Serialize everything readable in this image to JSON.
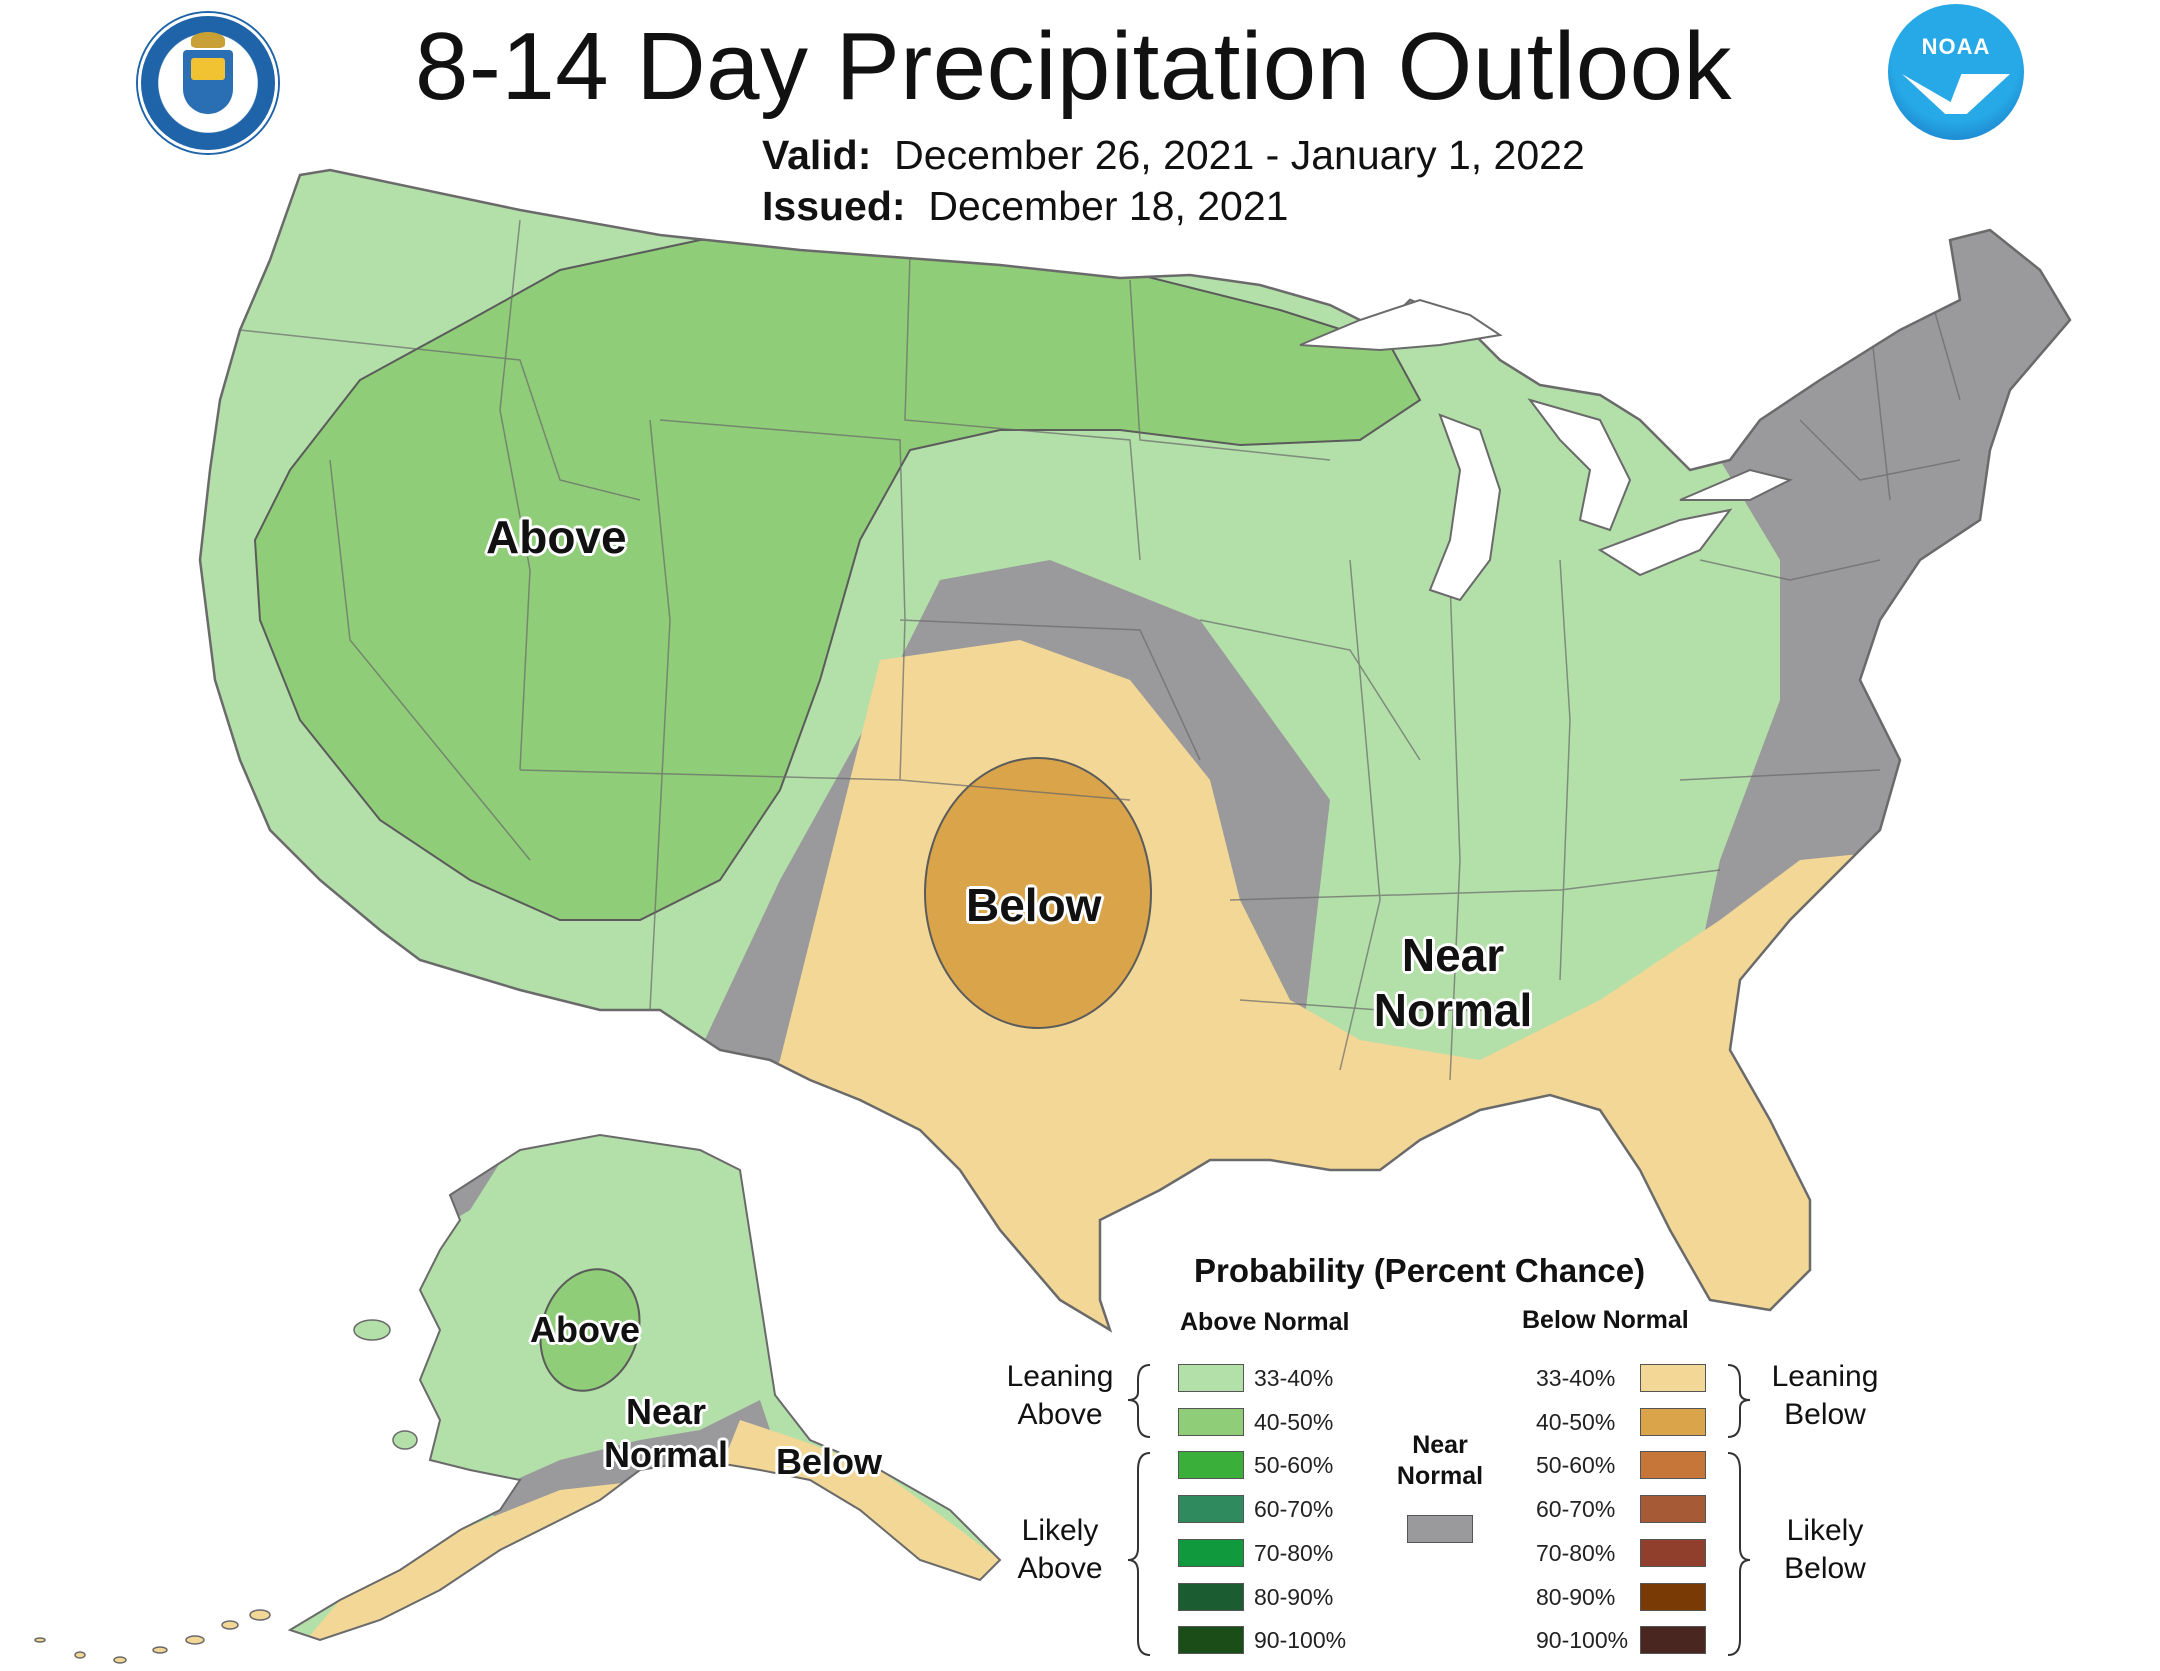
{
  "title": "8-14 Day Precipitation Outlook",
  "valid": {
    "label": "Valid:",
    "value": "December 26, 2021 - January 1, 2022"
  },
  "issued": {
    "label": "Issued:",
    "value": "December 18, 2021"
  },
  "logos": {
    "left": "department-of-commerce-seal",
    "right": "noaa-logo",
    "noaa_text": "NOAA"
  },
  "map_labels": {
    "conus_above": "Above",
    "conus_below": "Below",
    "conus_near_1": "Near",
    "conus_near_2": "Normal",
    "ak_above": "Above",
    "ak_near_1": "Near",
    "ak_near_2": "Normal",
    "ak_below": "Below"
  },
  "colors": {
    "above_33_40": "#b3dfa9",
    "above_40_50": "#8fcd78",
    "above_50_60": "#3ab03a",
    "above_60_70": "#2f8a5e",
    "above_70_80": "#119a3d",
    "above_80_90": "#1c5c31",
    "above_90_100": "#1a4d18",
    "near_normal": "#9a9a9c",
    "below_33_40": "#f2d796",
    "below_40_50": "#d9a44a",
    "below_50_60": "#c7763a",
    "below_60_70": "#a65a35",
    "below_70_80": "#8f3f2b",
    "below_80_90": "#7a3a06",
    "below_90_100": "#4a2620",
    "outline": "#5b5b5b"
  },
  "legend": {
    "title": "Probability (Percent Chance)",
    "above_header": "Above Normal",
    "below_header": "Below Normal",
    "near_normal_1": "Near",
    "near_normal_2": "Normal",
    "leaning_above_1": "Leaning",
    "leaning_above_2": "Above",
    "likely_above_1": "Likely",
    "likely_above_2": "Above",
    "leaning_below_1": "Leaning",
    "leaning_below_2": "Below",
    "likely_below_1": "Likely",
    "likely_below_2": "Below",
    "above_ranges": [
      "33-40%",
      "40-50%",
      "50-60%",
      "60-70%",
      "70-80%",
      "80-90%",
      "90-100%"
    ],
    "below_ranges": [
      "33-40%",
      "40-50%",
      "50-60%",
      "60-70%",
      "70-80%",
      "80-90%",
      "90-100%"
    ]
  }
}
